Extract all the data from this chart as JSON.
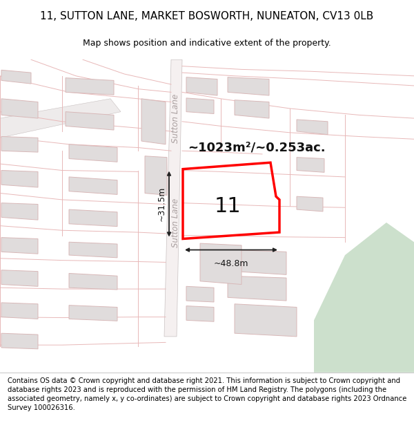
{
  "title": "11, SUTTON LANE, MARKET BOSWORTH, NUNEATON, CV13 0LB",
  "subtitle": "Map shows position and indicative extent of the property.",
  "area_label": "~1023m²/~0.253ac.",
  "plot_number": "11",
  "dim_width": "~48.8m",
  "dim_height": "~31.5m",
  "road_label": "Sutton Lane",
  "footer": "Contains OS data © Crown copyright and database right 2021. This information is subject to Crown copyright and database rights 2023 and is reproduced with the permission of HM Land Registry. The polygons (including the associated geometry, namely x, y co-ordinates) are subject to Crown copyright and database rights 2023 Ordnance Survey 100026316.",
  "map_bg": "#fafafa",
  "road_outline_color": "#e8b8b8",
  "building_face": "#e0dcdc",
  "building_edge": "#d8b8b8",
  "highlight_color": "#ff0000",
  "green_color": "#cce0cc",
  "road_gray": "#c8c0c0",
  "title_fontsize": 11,
  "subtitle_fontsize": 9,
  "footer_fontsize": 7.2,
  "dim_fontsize": 9,
  "area_fontsize": 13,
  "plot_num_fontsize": 22
}
